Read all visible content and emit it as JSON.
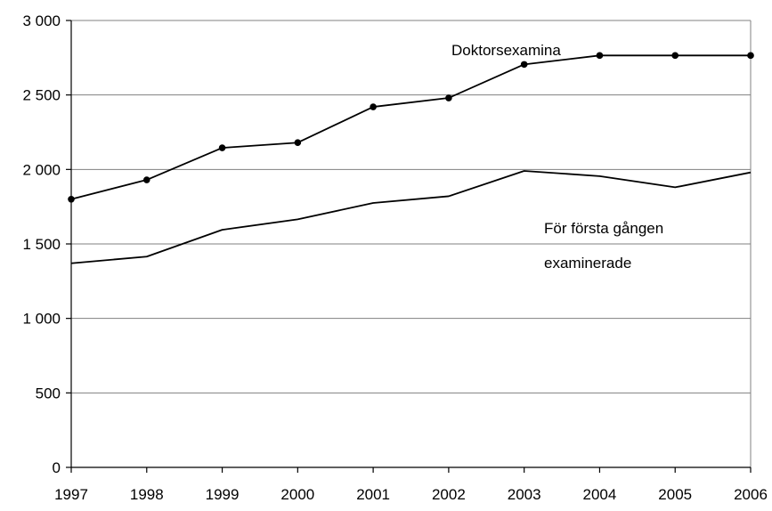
{
  "chart_data": {
    "type": "line",
    "title": "",
    "xlabel": "",
    "ylabel": "",
    "categories": [
      "1997",
      "1998",
      "1999",
      "2000",
      "2001",
      "2002",
      "2003",
      "2004",
      "2005",
      "2006"
    ],
    "y_tick_labels": [
      "0",
      "500",
      "1 000",
      "1 500",
      "2 000",
      "2 500",
      "3 000"
    ],
    "y_ticks": [
      0,
      500,
      1000,
      1500,
      2000,
      2500,
      3000
    ],
    "ylim": [
      0,
      3000
    ],
    "grid": "horizontal",
    "legend": "none",
    "series": [
      {
        "name": "Doktorsexamina",
        "values": [
          1800,
          1930,
          2145,
          2180,
          2420,
          2480,
          2705,
          2765,
          2765,
          2765
        ],
        "markers": true,
        "color": "#000000"
      },
      {
        "name": "För första gången examinerade",
        "values": [
          1370,
          1415,
          1595,
          1665,
          1775,
          1820,
          1990,
          1955,
          1880,
          1980
        ],
        "markers": false,
        "color": "#000000"
      }
    ],
    "annotations": [
      {
        "series": 0,
        "lines": [
          "Doktorsexamina"
        ]
      },
      {
        "series": 1,
        "lines": [
          "För första gången",
          "examinerade"
        ]
      }
    ]
  }
}
